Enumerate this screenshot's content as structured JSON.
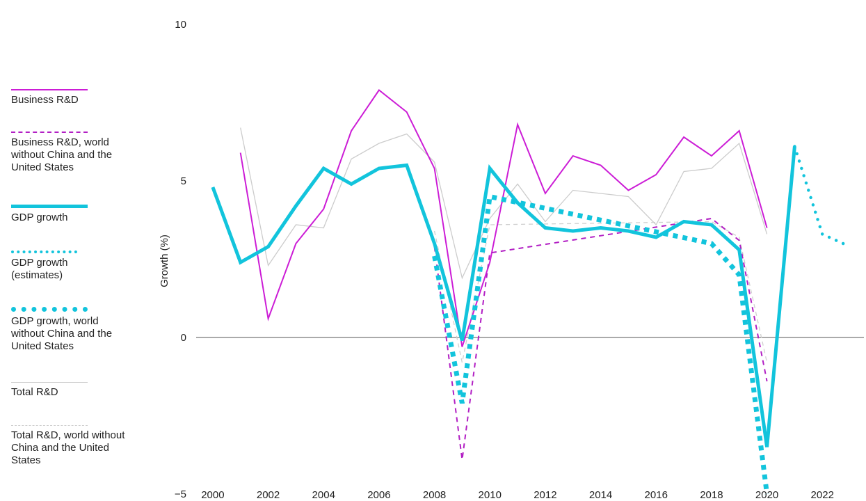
{
  "chart_data": {
    "type": "line",
    "title": "",
    "xlabel": "",
    "ylabel": "Growth (%)",
    "xlim": [
      1999.4,
      2023.5
    ],
    "ylim": [
      -5,
      10
    ],
    "x_ticks": [
      2000,
      2002,
      2004,
      2006,
      2008,
      2010,
      2012,
      2014,
      2016,
      2018,
      2020,
      2022
    ],
    "y_ticks": [
      -5,
      0,
      5,
      10
    ],
    "legend_position": "left",
    "series": [
      {
        "name": "Business R&D",
        "color": "#cc1dd6",
        "style": "solid",
        "points": [
          [
            2001,
            5.9
          ],
          [
            2002,
            0.6
          ],
          [
            2003,
            3.0
          ],
          [
            2004,
            4.1
          ],
          [
            2005,
            6.6
          ],
          [
            2006,
            7.9
          ],
          [
            2007,
            7.2
          ],
          [
            2008,
            5.4
          ],
          [
            2009,
            -0.3
          ],
          [
            2010,
            2.4
          ],
          [
            2011,
            6.8
          ],
          [
            2012,
            4.6
          ],
          [
            2013,
            5.8
          ],
          [
            2014,
            5.5
          ],
          [
            2015,
            4.7
          ],
          [
            2016,
            5.2
          ],
          [
            2017,
            6.4
          ],
          [
            2018,
            5.8
          ],
          [
            2019,
            6.6
          ],
          [
            2020,
            3.5
          ]
        ]
      },
      {
        "name": "Business R&D, world without China and the United States",
        "color": "#b21fc4",
        "style": "dashed",
        "points": [
          [
            2008,
            2.9
          ],
          [
            2009,
            -3.9
          ],
          [
            2010,
            2.7
          ],
          [
            2018,
            3.8
          ],
          [
            2019,
            3.1
          ],
          [
            2020,
            -1.4
          ]
        ]
      },
      {
        "name": "GDP growth",
        "color": "#12c4dc",
        "style": "solid-thick",
        "points": [
          [
            2000,
            4.8
          ],
          [
            2001,
            2.4
          ],
          [
            2002,
            2.9
          ],
          [
            2003,
            4.2
          ],
          [
            2004,
            5.4
          ],
          [
            2005,
            4.9
          ],
          [
            2006,
            5.4
          ],
          [
            2007,
            5.5
          ],
          [
            2008,
            3.0
          ],
          [
            2009,
            -0.1
          ],
          [
            2010,
            5.4
          ],
          [
            2011,
            4.3
          ],
          [
            2012,
            3.5
          ],
          [
            2013,
            3.4
          ],
          [
            2014,
            3.5
          ],
          [
            2015,
            3.4
          ],
          [
            2016,
            3.2
          ],
          [
            2017,
            3.7
          ],
          [
            2018,
            3.6
          ],
          [
            2019,
            2.8
          ],
          [
            2020,
            -3.5
          ],
          [
            2021,
            6.1
          ]
        ]
      },
      {
        "name": "GDP growth (estimates)",
        "color": "#12c4dc",
        "style": "dotted",
        "points": [
          [
            2021,
            6.1
          ],
          [
            2022,
            3.3
          ],
          [
            2023,
            2.9
          ]
        ]
      },
      {
        "name": "GDP growth, world without China and the United States",
        "color": "#12c4dc",
        "style": "dotted-thick",
        "points": [
          [
            2008,
            2.6
          ],
          [
            2009,
            -2.1
          ],
          [
            2010,
            4.5
          ],
          [
            2018,
            3.0
          ],
          [
            2019,
            2.0
          ],
          [
            2020,
            -5.0
          ]
        ]
      },
      {
        "name": "Total R&D",
        "color": "#cccccc",
        "style": "solid-thin",
        "points": [
          [
            2001,
            6.7
          ],
          [
            2002,
            2.3
          ],
          [
            2003,
            3.6
          ],
          [
            2004,
            3.5
          ],
          [
            2005,
            5.7
          ],
          [
            2006,
            6.2
          ],
          [
            2007,
            6.5
          ],
          [
            2008,
            5.6
          ],
          [
            2009,
            1.9
          ],
          [
            2010,
            3.8
          ],
          [
            2011,
            4.9
          ],
          [
            2012,
            3.7
          ],
          [
            2013,
            4.7
          ],
          [
            2014,
            4.6
          ],
          [
            2015,
            4.5
          ],
          [
            2016,
            3.6
          ],
          [
            2017,
            5.3
          ],
          [
            2018,
            5.4
          ],
          [
            2019,
            6.2
          ],
          [
            2020,
            3.3
          ]
        ]
      },
      {
        "name": "Total R&D, world without China and the United States",
        "color": "#cfcfcf",
        "style": "dashed-thin",
        "points": [
          [
            2008,
            3.4
          ],
          [
            2009,
            -0.8
          ],
          [
            2010,
            3.6
          ],
          [
            2018,
            3.7
          ],
          [
            2019,
            3.2
          ],
          [
            2020,
            -0.8
          ]
        ]
      }
    ]
  }
}
